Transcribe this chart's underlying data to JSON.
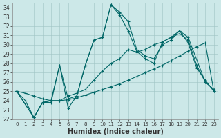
{
  "xlabel": "Humidex (Indice chaleur)",
  "bg_color": "#cce8e8",
  "line_color": "#006666",
  "grid_color": "#9fc4c4",
  "xlim": [
    -0.5,
    23.5
  ],
  "ylim": [
    22,
    34.5
  ],
  "xticks": [
    0,
    1,
    2,
    3,
    4,
    5,
    6,
    7,
    8,
    9,
    10,
    11,
    12,
    13,
    14,
    15,
    16,
    17,
    18,
    19,
    20,
    21,
    22,
    23
  ],
  "yticks": [
    22,
    23,
    24,
    25,
    26,
    27,
    28,
    29,
    30,
    31,
    32,
    33,
    34
  ],
  "series": [
    {
      "x": [
        0,
        1,
        2,
        3,
        4,
        5,
        6,
        7,
        8,
        9,
        10,
        11,
        12,
        13,
        14,
        15,
        16,
        17,
        18,
        19,
        20,
        21,
        22,
        23
      ],
      "y": [
        25,
        24,
        22.2,
        23.8,
        23.8,
        27.8,
        23.2,
        24.5,
        27.8,
        30.5,
        30.8,
        34.3,
        33.2,
        31.5,
        29.3,
        28.5,
        28.0,
        30.3,
        30.8,
        31.5,
        30.2,
        27.5,
        26.2,
        25.0
      ]
    },
    {
      "x": [
        0,
        2,
        3,
        4,
        5,
        6,
        7,
        8,
        9,
        10,
        11,
        12,
        13,
        14,
        15,
        16,
        17,
        18,
        19,
        20,
        22,
        23
      ],
      "y": [
        25,
        22.2,
        23.8,
        24.0,
        27.8,
        24.2,
        24.5,
        27.8,
        30.5,
        30.8,
        34.3,
        33.5,
        32.5,
        29.5,
        28.8,
        28.5,
        30.0,
        30.5,
        31.5,
        30.8,
        26.0,
        25.2
      ]
    },
    {
      "x": [
        0,
        1,
        2,
        3,
        4,
        5,
        6,
        7,
        8,
        9,
        10,
        11,
        12,
        13,
        14,
        15,
        16,
        17,
        18,
        19,
        20,
        21,
        22,
        23
      ],
      "y": [
        25,
        24.8,
        24.5,
        24.2,
        24.0,
        24.0,
        24.1,
        24.3,
        24.6,
        24.9,
        25.2,
        25.5,
        25.8,
        26.2,
        26.6,
        27.0,
        27.4,
        27.8,
        28.3,
        28.8,
        29.3,
        29.8,
        30.2,
        25.0
      ]
    },
    {
      "x": [
        0,
        2,
        3,
        4,
        5,
        6,
        7,
        8,
        9,
        10,
        11,
        12,
        13,
        14,
        15,
        16,
        17,
        18,
        19,
        20,
        21,
        22,
        23
      ],
      "y": [
        25,
        22.2,
        23.8,
        24.0,
        24.0,
        24.5,
        24.8,
        25.2,
        26.2,
        27.2,
        28.0,
        28.5,
        29.5,
        29.2,
        29.5,
        30.0,
        30.3,
        30.8,
        31.2,
        30.5,
        27.8,
        26.0,
        25.2
      ]
    }
  ]
}
